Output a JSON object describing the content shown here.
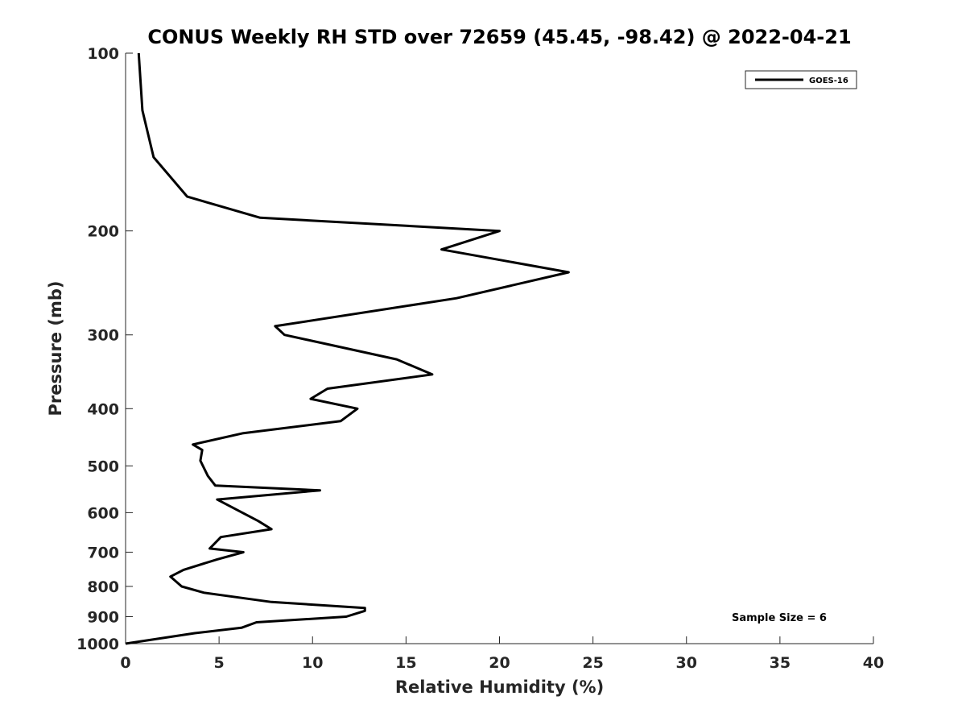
{
  "chart_data": {
    "type": "line",
    "title": "CONUS Weekly RH STD over 72659 (45.45, -98.42) @ 2022-04-21",
    "xlabel": "Relative Humidity (%)",
    "ylabel": "Pressure (mb)",
    "xlim": [
      0,
      40
    ],
    "ylim": [
      100,
      1000
    ],
    "y_scale": "log",
    "y_reversed": true,
    "xticks": [
      0,
      5,
      10,
      15,
      20,
      25,
      30,
      35,
      40
    ],
    "yticks": [
      100,
      200,
      300,
      400,
      500,
      600,
      700,
      800,
      900,
      1000
    ],
    "grid": false,
    "legend": {
      "entries": [
        "GOES-16"
      ],
      "placement": "top-right"
    },
    "annotations": [
      "Sample Size = 6"
    ],
    "series": [
      {
        "name": "GOES-16",
        "color": "#000000",
        "points": [
          [
            0.7,
            100
          ],
          [
            0.9,
            125
          ],
          [
            1.5,
            150
          ],
          [
            3.3,
            175
          ],
          [
            7.2,
            190
          ],
          [
            20.0,
            200
          ],
          [
            16.9,
            215
          ],
          [
            23.7,
            235
          ],
          [
            17.7,
            260
          ],
          [
            8.0,
            290
          ],
          [
            8.5,
            300
          ],
          [
            14.5,
            330
          ],
          [
            16.4,
            350
          ],
          [
            10.8,
            370
          ],
          [
            9.9,
            385
          ],
          [
            12.4,
            400
          ],
          [
            11.5,
            420
          ],
          [
            6.3,
            440
          ],
          [
            3.6,
            460
          ],
          [
            4.1,
            470
          ],
          [
            4.0,
            490
          ],
          [
            4.4,
            520
          ],
          [
            4.8,
            540
          ],
          [
            10.4,
            550
          ],
          [
            4.9,
            570
          ],
          [
            7.1,
            620
          ],
          [
            7.8,
            640
          ],
          [
            5.1,
            660
          ],
          [
            4.5,
            690
          ],
          [
            6.3,
            700
          ],
          [
            4.9,
            720
          ],
          [
            3.1,
            750
          ],
          [
            2.4,
            770
          ],
          [
            3.0,
            800
          ],
          [
            4.2,
            820
          ],
          [
            7.8,
            850
          ],
          [
            12.8,
            870
          ],
          [
            12.8,
            880
          ],
          [
            11.8,
            900
          ],
          [
            7.0,
            920
          ],
          [
            6.2,
            940
          ],
          [
            3.7,
            960
          ],
          [
            0.0,
            1000
          ]
        ]
      }
    ]
  }
}
